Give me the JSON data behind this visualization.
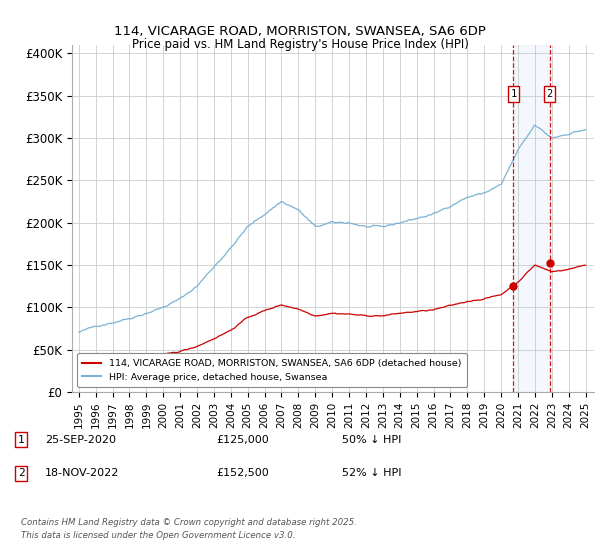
{
  "title1": "114, VICARAGE ROAD, MORRISTON, SWANSEA, SA6 6DP",
  "title2": "Price paid vs. HM Land Registry's House Price Index (HPI)",
  "background_color": "#ffffff",
  "plot_bg_color": "#ffffff",
  "grid_color": "#cccccc",
  "hpi_color": "#7ab3d4",
  "price_color": "#cc0000",
  "annotation_bg": "#ddeeff",
  "legend_label_red": "114, VICARAGE ROAD, MORRISTON, SWANSEA, SA6 6DP (detached house)",
  "legend_label_blue": "HPI: Average price, detached house, Swansea",
  "note1_num": "1",
  "note1_date": "25-SEP-2020",
  "note1_price": "£125,000",
  "note1_pct": "50% ↓ HPI",
  "note2_num": "2",
  "note2_date": "18-NOV-2022",
  "note2_price": "£152,500",
  "note2_pct": "52% ↓ HPI",
  "footer": "Contains HM Land Registry data © Crown copyright and database right 2025.\nThis data is licensed under the Open Government Licence v3.0.",
  "ylim": [
    0,
    410000
  ],
  "yticks": [
    0,
    50000,
    100000,
    150000,
    200000,
    250000,
    300000,
    350000,
    400000
  ],
  "ytick_labels": [
    "£0",
    "£50K",
    "£100K",
    "£150K",
    "£200K",
    "£250K",
    "£300K",
    "£350K",
    "£400K"
  ],
  "sale1_year": 2020.73,
  "sale2_year": 2022.88,
  "sale1_price": 125000,
  "sale2_price": 152500
}
